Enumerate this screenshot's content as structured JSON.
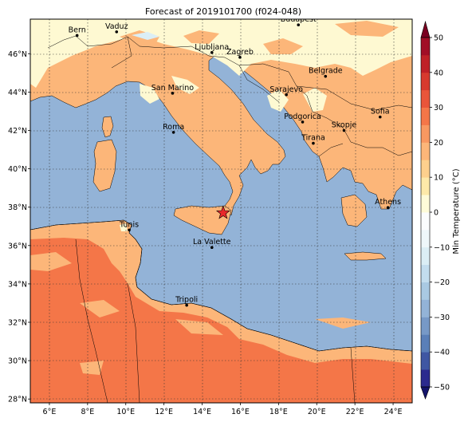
{
  "title": "Forecast of 2019101700 (f024-048)",
  "map": {
    "lon_ticks": [
      "6°E",
      "8°E",
      "10°E",
      "12°E",
      "14°E",
      "16°E",
      "18°E",
      "20°E",
      "22°E",
      "24°E"
    ],
    "lat_ticks": [
      "46°N",
      "44°N",
      "42°N",
      "40°N",
      "38°N",
      "36°N",
      "34°N",
      "32°N",
      "30°N",
      "28°N"
    ],
    "cities": [
      {
        "name": "Bern",
        "lon": 7.45,
        "lat": 46.95
      },
      {
        "name": "Vaduz",
        "lon": 9.52,
        "lat": 47.14
      },
      {
        "name": "Budapest",
        "lon": 19.04,
        "lat": 47.5
      },
      {
        "name": "Ljubljana",
        "lon": 14.51,
        "lat": 46.06
      },
      {
        "name": "Zagreb",
        "lon": 15.98,
        "lat": 45.81
      },
      {
        "name": "Belgrade",
        "lon": 20.46,
        "lat": 44.82
      },
      {
        "name": "San Marino",
        "lon": 12.45,
        "lat": 43.94
      },
      {
        "name": "Sarajevo",
        "lon": 18.41,
        "lat": 43.86
      },
      {
        "name": "Sofia",
        "lon": 23.32,
        "lat": 42.7
      },
      {
        "name": "Podgorica",
        "lon": 19.26,
        "lat": 42.44
      },
      {
        "name": "Skopje",
        "lon": 21.43,
        "lat": 42.0
      },
      {
        "name": "Roma",
        "lon": 12.5,
        "lat": 41.9
      },
      {
        "name": "Tirana",
        "lon": 19.82,
        "lat": 41.33
      },
      {
        "name": "Athens",
        "lon": 23.73,
        "lat": 37.98
      },
      {
        "name": "Tunis",
        "lon": 10.18,
        "lat": 36.81
      },
      {
        "name": "La Valette",
        "lon": 14.51,
        "lat": 35.9
      },
      {
        "name": "Tripoli",
        "lon": 13.19,
        "lat": 32.89
      }
    ],
    "marker": {
      "lon": 15.1,
      "lat": 37.7,
      "color": "#e8282a"
    }
  },
  "colorbar": {
    "label": "Min Temperature (°C)",
    "ticks": [
      "50",
      "40",
      "30",
      "20",
      "10",
      "0",
      "−10",
      "−20",
      "−30",
      "−40",
      "−50"
    ],
    "levels": [
      -50,
      -45,
      -40,
      -35,
      -30,
      -25,
      -20,
      -15,
      -10,
      -5,
      0,
      5,
      10,
      15,
      20,
      25,
      30,
      35,
      40,
      45,
      50
    ],
    "colors": [
      "#2b2a8e",
      "#3f57a3",
      "#5a7fb8",
      "#7799c7",
      "#93b3d7",
      "#a9c9e2",
      "#c3ddee",
      "#dbeef5",
      "#eef7fa",
      "#fbfcfd",
      "#fefbd8",
      "#fde9a9",
      "#fdd08d",
      "#fcb679",
      "#f89861",
      "#f47648",
      "#e9553a",
      "#d73a2e",
      "#bf2127",
      "#a10e26"
    ],
    "extend_low": "#14146b",
    "extend_high": "#7a0021"
  },
  "palette": {
    "sea": "#93b3d7",
    "land_warm": "#fcb679",
    "land_hot": "#f47648",
    "land_mild": "#fef9d2",
    "land_cool": "#dbeef5"
  }
}
